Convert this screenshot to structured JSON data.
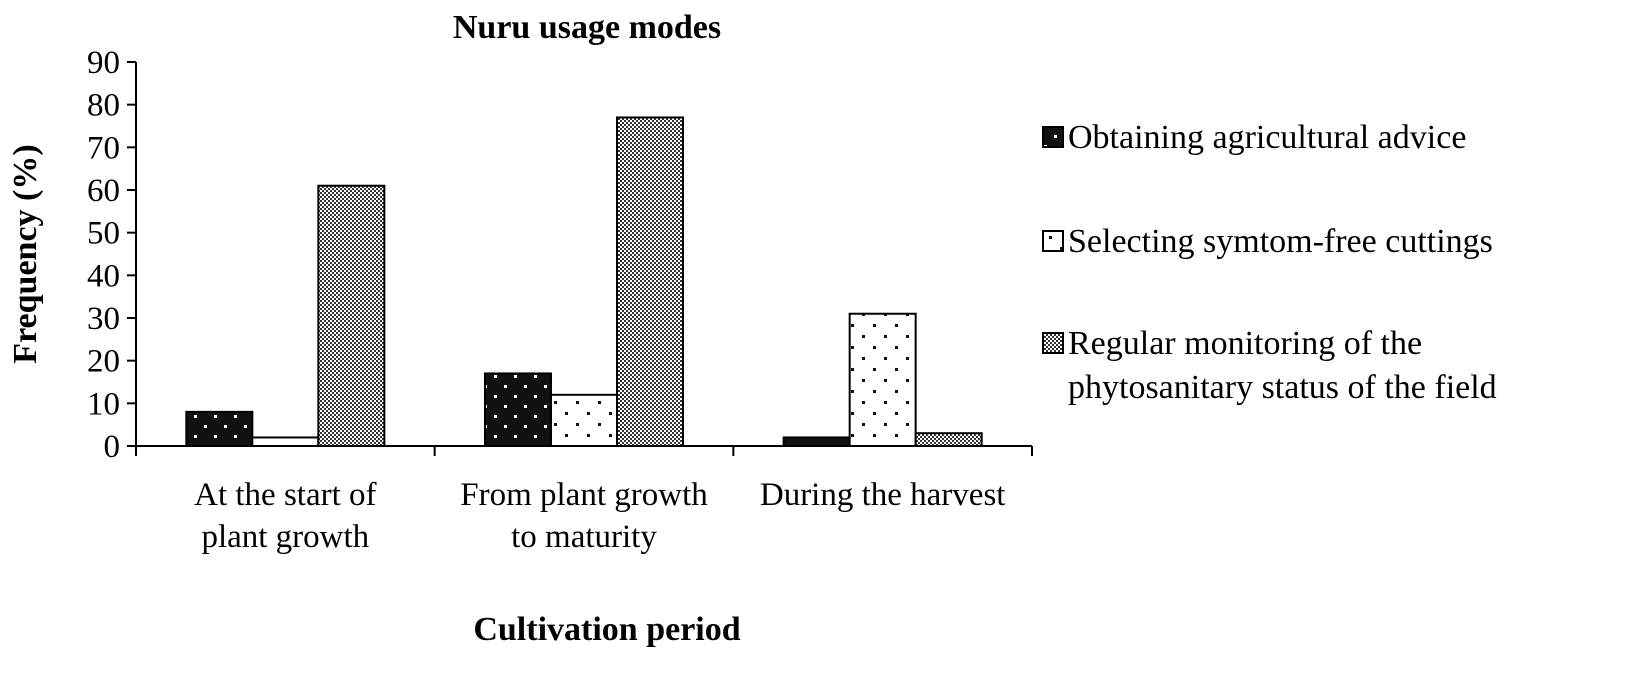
{
  "chart_data": {
    "type": "bar",
    "title": "Nuru usage modes",
    "xlabel": "Cultivation period",
    "ylabel": "Frequency (%)",
    "ylim": [
      0,
      90
    ],
    "yticks": [
      0,
      10,
      20,
      30,
      40,
      50,
      60,
      70,
      80,
      90
    ],
    "categories": [
      [
        "At the start of",
        "plant growth"
      ],
      [
        "From plant growth",
        "to maturity"
      ],
      [
        "During the harvest"
      ]
    ],
    "series": [
      {
        "name": "Obtaining agricultural advice",
        "values": [
          8,
          17,
          2
        ],
        "pattern": "dark-dotted"
      },
      {
        "name": "Selecting symtom-free cuttings",
        "values": [
          2,
          12,
          31
        ],
        "pattern": "light-dotted"
      },
      {
        "name": "Regular monitoring of the phytosanitary status of the field",
        "legend_lines": [
          "Regular monitoring of the",
          "phytosanitary status of the field"
        ],
        "values": [
          61,
          77,
          3
        ],
        "pattern": "checker"
      }
    ],
    "grid": false,
    "legend": "right"
  }
}
